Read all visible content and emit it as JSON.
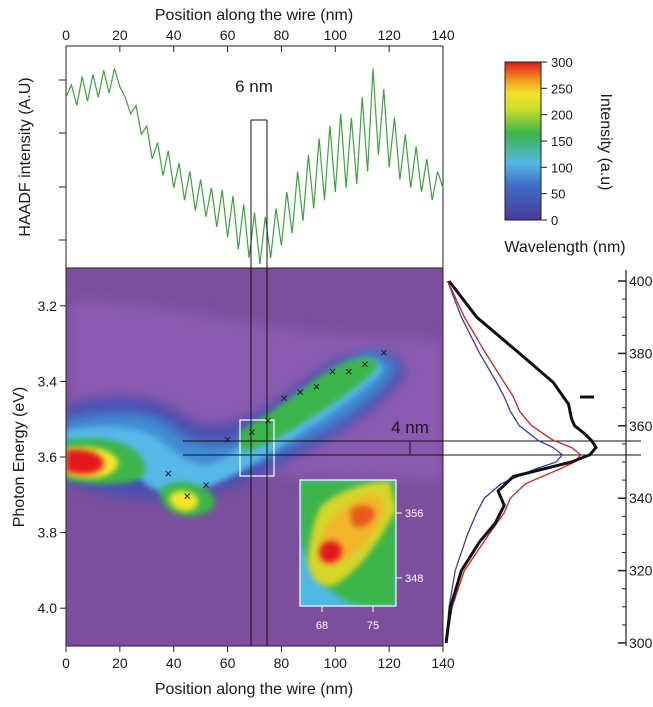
{
  "chart_data": [
    {
      "panel": "HAADF profile",
      "type": "line",
      "top_axis_label": "Position along the wire (nm)",
      "ylabel": "HAADF intensity (A.U)",
      "x_ticks": [
        "0",
        "20",
        "40",
        "60",
        "80",
        "100",
        "120",
        "140"
      ],
      "xlim": [
        0,
        140
      ],
      "ylim": [
        0,
        1
      ],
      "line_color": "#3aa63a",
      "series": [
        {
          "x": [
            0,
            2,
            4,
            6,
            8,
            10,
            12,
            14,
            16,
            18,
            20,
            22,
            24,
            26,
            28,
            30,
            32,
            34,
            36,
            38,
            40,
            42,
            44,
            46,
            48,
            50,
            52,
            54,
            56,
            58,
            60,
            62,
            64,
            66,
            68,
            70,
            72,
            74,
            76,
            78,
            80,
            82,
            84,
            86,
            88,
            90,
            92,
            94,
            96,
            98,
            100,
            102,
            104,
            106,
            108,
            110,
            112,
            114,
            116,
            118,
            120,
            122,
            124,
            126,
            128,
            130,
            132,
            134,
            136,
            138,
            140
          ],
          "y": [
            0.8,
            0.86,
            0.76,
            0.9,
            0.78,
            0.91,
            0.8,
            0.93,
            0.82,
            0.94,
            0.85,
            0.8,
            0.72,
            0.76,
            0.62,
            0.66,
            0.5,
            0.58,
            0.42,
            0.54,
            0.36,
            0.48,
            0.3,
            0.44,
            0.25,
            0.4,
            0.22,
            0.36,
            0.17,
            0.35,
            0.12,
            0.32,
            0.06,
            0.28,
            0.02,
            0.24,
            -0.01,
            0.22,
            0.02,
            0.26,
            0.08,
            0.34,
            0.14,
            0.44,
            0.2,
            0.52,
            0.26,
            0.6,
            0.3,
            0.66,
            0.34,
            0.72,
            0.36,
            0.7,
            0.38,
            0.8,
            0.44,
            0.94,
            0.52,
            0.84,
            0.46,
            0.7,
            0.4,
            0.62,
            0.36,
            0.56,
            0.34,
            0.5,
            0.3,
            0.44,
            0.36
          ]
        }
      ],
      "annotations": [
        {
          "text": "6 nm",
          "x_from": 69,
          "x_to": 75
        }
      ]
    },
    {
      "panel": "CL map",
      "type": "heatmap",
      "xlabel": "Position along the wire (nm)",
      "ylabel": "Photon Energy (eV)",
      "x_ticks": [
        "0",
        "20",
        "40",
        "60",
        "80",
        "100",
        "120",
        "140"
      ],
      "y_ticks": [
        "3.2",
        "3.4",
        "3.6",
        "3.8",
        "4.0"
      ],
      "xlim": [
        0,
        140
      ],
      "ylim": [
        3.1,
        4.1
      ],
      "markers": {
        "symbol": "×",
        "points": [
          [
            38,
            3.645
          ],
          [
            45,
            3.705
          ],
          [
            52,
            3.675
          ],
          [
            60,
            3.555
          ],
          [
            69,
            3.535
          ],
          [
            75,
            3.505
          ],
          [
            81,
            3.445
          ],
          [
            87,
            3.43
          ],
          [
            93,
            3.415
          ],
          [
            99,
            3.375
          ],
          [
            105,
            3.375
          ],
          [
            111,
            3.355
          ],
          [
            118,
            3.325
          ]
        ]
      },
      "annotations": [
        {
          "text": "4 nm",
          "y_from": 3.52,
          "y_to": 3.56,
          "x": 128
        }
      ],
      "inset": {
        "x_ticks": [
          "68",
          "75"
        ],
        "y_ticks_right": [
          "356",
          "348"
        ]
      }
    },
    {
      "panel": "Colorbar",
      "type": "colorbar",
      "label": "Intensity (a.u)",
      "ticks": [
        "0",
        "50",
        "100",
        "150",
        "200",
        "250",
        "300"
      ],
      "range": [
        0,
        300
      ],
      "colors": [
        "#4a3a9a",
        "#55a8e0",
        "#3bb54a",
        "#f3e52a",
        "#ef8b1b",
        "#e4151b"
      ]
    },
    {
      "panel": "Spectra",
      "type": "line",
      "right_axis_label": "Wavelength (nm)",
      "right_ticks": [
        "300",
        "320",
        "340",
        "360",
        "380",
        "400"
      ],
      "ylim": [
        300,
        400
      ],
      "series": [
        {
          "color": "#111111",
          "x": [
            300,
            310,
            320,
            328,
            333,
            338,
            342,
            346,
            350,
            352,
            354,
            356,
            358,
            360,
            362,
            366,
            372,
            380,
            390,
            400
          ],
          "y": [
            0.02,
            0.05,
            0.12,
            0.24,
            0.34,
            0.4,
            0.36,
            0.46,
            0.84,
            0.96,
            1.0,
            0.97,
            0.92,
            0.86,
            0.84,
            0.82,
            0.72,
            0.5,
            0.22,
            0.04
          ]
        },
        {
          "color": "#d81e1e",
          "x": [
            300,
            310,
            320,
            330,
            336,
            340,
            344,
            348,
            350,
            352,
            354,
            356,
            360,
            364,
            368,
            372,
            380,
            390,
            400
          ],
          "y": [
            0.02,
            0.06,
            0.14,
            0.3,
            0.4,
            0.44,
            0.54,
            0.76,
            0.86,
            0.9,
            0.84,
            0.72,
            0.58,
            0.5,
            0.46,
            0.4,
            0.28,
            0.14,
            0.03
          ]
        },
        {
          "color": "#3b3cab",
          "x": [
            300,
            310,
            320,
            330,
            336,
            340,
            344,
            348,
            350,
            352,
            354,
            356,
            360,
            364,
            368,
            372,
            380,
            390,
            400
          ],
          "y": [
            0.02,
            0.04,
            0.08,
            0.16,
            0.22,
            0.27,
            0.38,
            0.6,
            0.74,
            0.78,
            0.72,
            0.62,
            0.5,
            0.44,
            0.4,
            0.35,
            0.24,
            0.12,
            0.03
          ]
        }
      ]
    }
  ]
}
